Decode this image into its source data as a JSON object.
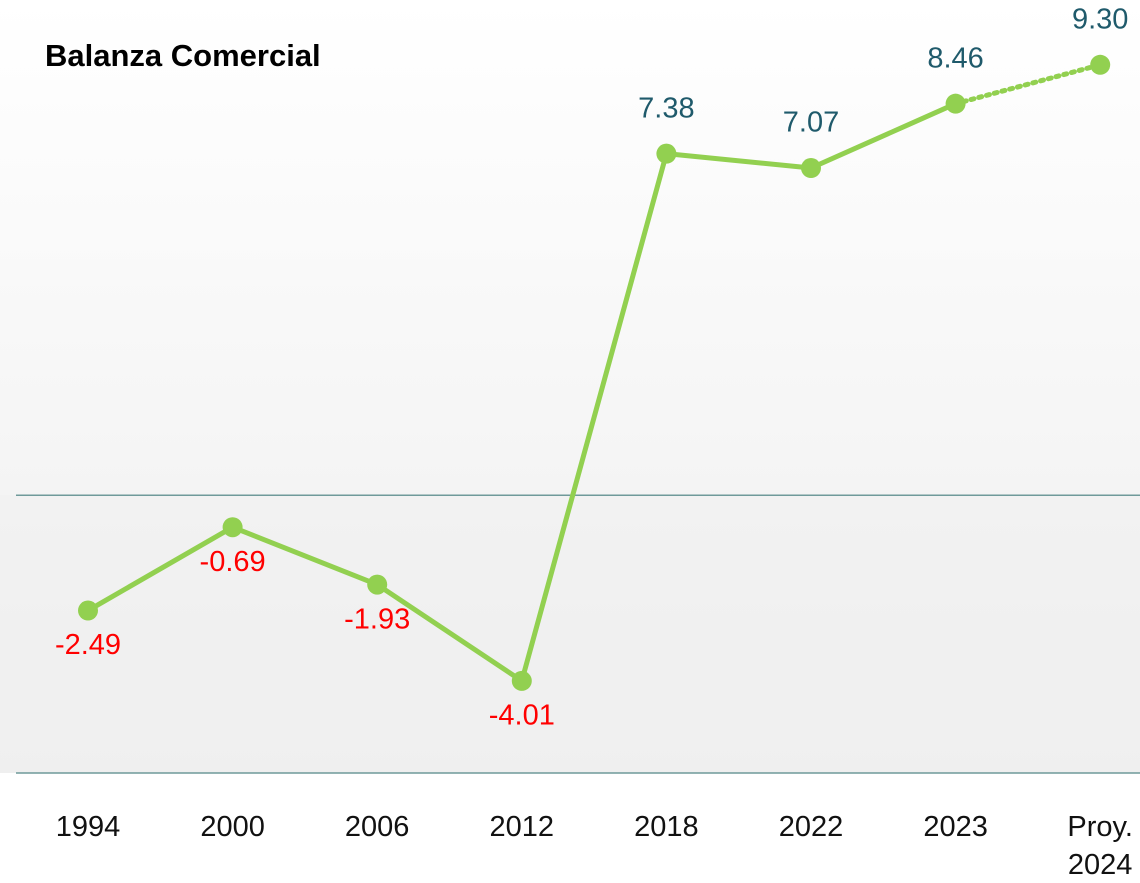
{
  "chart_data": {
    "type": "line",
    "title": "Balanza Comercial",
    "categories": [
      "1994",
      "2000",
      "2006",
      "2012",
      "2018",
      "2022",
      "2023",
      "Proy. 2024"
    ],
    "series": [
      {
        "color": "#92d050",
        "values": [
          -2.49,
          -0.69,
          -1.93,
          -4.01,
          7.38,
          7.07,
          8.46,
          9.3
        ],
        "value_labels": [
          "-2.49",
          "-0.69",
          "-1.93",
          "-4.01",
          "7.38",
          "7.07",
          "8.46",
          "9.30"
        ],
        "projected": [
          false,
          false,
          false,
          false,
          false,
          false,
          false,
          true
        ]
      }
    ],
    "ylim": [
      -6,
      10.7
    ],
    "zero_line": true,
    "label_colors": {
      "positive": "#1f5a6b",
      "negative": "#ff0000"
    }
  }
}
